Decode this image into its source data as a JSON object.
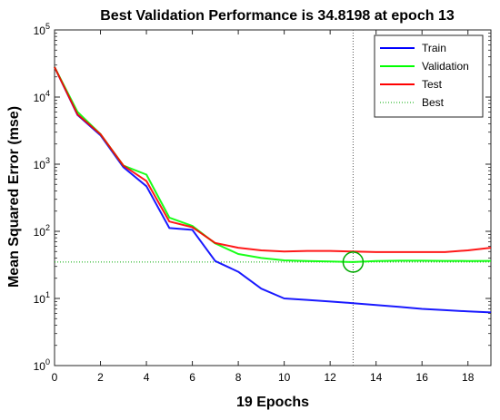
{
  "chart_data": {
    "type": "line",
    "title": "Best Validation Performance is 34.8198 at epoch 13",
    "xlabel": "19 Epochs",
    "ylabel": "Mean Squared Error  (mse)",
    "xlim": [
      0,
      19
    ],
    "ylim": [
      1,
      100000
    ],
    "yscale": "log",
    "x_ticks": [
      0,
      2,
      4,
      6,
      8,
      10,
      12,
      14,
      16,
      18
    ],
    "x_tick_labels": [
      "0",
      "2",
      "4",
      "6",
      "8",
      "10",
      "12",
      "14",
      "16",
      "18"
    ],
    "y_ticks": [
      1,
      10,
      100,
      1000,
      10000,
      100000
    ],
    "y_tick_labels": [
      {
        "base": "10",
        "exp": "0"
      },
      {
        "base": "10",
        "exp": "1"
      },
      {
        "base": "10",
        "exp": "2"
      },
      {
        "base": "10",
        "exp": "3"
      },
      {
        "base": "10",
        "exp": "4"
      },
      {
        "base": "10",
        "exp": "5"
      }
    ],
    "grid": false,
    "legend_position": "top-right",
    "series": [
      {
        "name": "Train",
        "color": "#0000ff",
        "x": [
          0,
          1,
          2,
          3,
          4,
          5,
          6,
          7,
          8,
          9,
          10,
          11,
          12,
          13,
          14,
          15,
          16,
          17,
          18,
          19
        ],
        "values": [
          28000,
          5400,
          2700,
          900,
          470,
          112,
          105,
          36,
          25,
          14,
          10,
          9.5,
          9.0,
          8.5,
          8.0,
          7.5,
          7.0,
          6.7,
          6.4,
          6.2
        ]
      },
      {
        "name": "Validation",
        "color": "#00ff00",
        "x": [
          0,
          1,
          2,
          3,
          4,
          5,
          6,
          7,
          8,
          9,
          10,
          11,
          12,
          13,
          14,
          15,
          16,
          17,
          18,
          19
        ],
        "values": [
          28000,
          6000,
          2800,
          950,
          700,
          160,
          120,
          66,
          46,
          40,
          37,
          36,
          35.5,
          34.8198,
          36,
          36.5,
          36.5,
          36.3,
          36.2,
          36.3
        ]
      },
      {
        "name": "Test",
        "color": "#ff0000",
        "x": [
          0,
          1,
          2,
          3,
          4,
          5,
          6,
          7,
          8,
          9,
          10,
          11,
          12,
          13,
          14,
          15,
          16,
          17,
          18,
          19
        ],
        "values": [
          28000,
          5500,
          2800,
          950,
          560,
          140,
          115,
          67,
          57,
          52,
          50,
          51,
          51,
          50,
          49,
          49,
          49,
          49,
          52,
          57
        ]
      }
    ],
    "best": {
      "name": "Best",
      "epoch": 13,
      "value": 34.8198,
      "color": "#00aa00"
    }
  }
}
